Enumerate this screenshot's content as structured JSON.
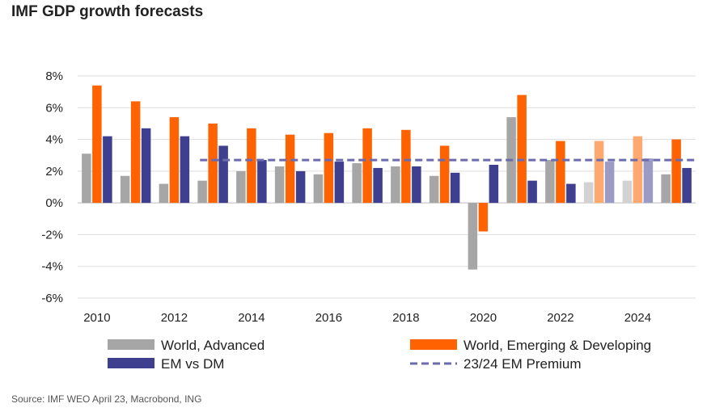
{
  "title": "IMF GDP growth forecasts",
  "source": "Source: IMF WEO April 23, Macrobond, ING",
  "colors": {
    "advanced": "#a6a6a6",
    "advanced_forecast": "#d2d2d2",
    "emerging": "#ff6200",
    "emerging_forecast": "#ffa86f",
    "em_vs_dm": "#3f3f8f",
    "em_vs_dm_forecast": "#9b9bc6",
    "premium": "#6b6bad",
    "grid": "#dddddd"
  },
  "chart_data": {
    "type": "bar",
    "title": "IMF GDP growth forecasts",
    "categories": [
      2010,
      2011,
      2012,
      2013,
      2014,
      2015,
      2016,
      2017,
      2018,
      2019,
      2020,
      2021,
      2022,
      2023,
      2024,
      2025
    ],
    "x_tick_labels": [
      "2010",
      "2012",
      "2014",
      "2016",
      "2018",
      "2020",
      "2022",
      "2024"
    ],
    "forecast_categories": [
      2023,
      2024
    ],
    "series": [
      {
        "name": "World, Advanced",
        "values": [
          3.1,
          1.7,
          1.2,
          1.4,
          2.0,
          2.3,
          1.8,
          2.5,
          2.3,
          1.7,
          -4.2,
          5.4,
          2.7,
          1.3,
          1.4,
          1.8
        ]
      },
      {
        "name": "World, Emerging & Developing",
        "values": [
          7.4,
          6.4,
          5.4,
          5.0,
          4.7,
          4.3,
          4.4,
          4.7,
          4.6,
          3.6,
          -1.8,
          6.8,
          3.9,
          3.9,
          4.2,
          4.0
        ]
      },
      {
        "name": "EM vs DM",
        "values": [
          4.2,
          4.7,
          4.2,
          3.6,
          2.7,
          2.0,
          2.6,
          2.2,
          2.3,
          1.9,
          2.4,
          1.4,
          1.2,
          2.6,
          2.8,
          2.2
        ]
      }
    ],
    "reference_line": {
      "name": "23/24 EM Premium",
      "value": 2.7,
      "start_category": 2013
    },
    "ylim": [
      -6,
      8
    ],
    "y_ticks": [
      8,
      6,
      4,
      2,
      0,
      -2,
      -4,
      -6
    ],
    "y_tick_labels": [
      "8%",
      "6%",
      "4%",
      "2%",
      "0%",
      "-2%",
      "-4%",
      "-6%"
    ],
    "xlabel": "",
    "ylabel": "",
    "grid": true,
    "legend": {
      "placement": "bottom",
      "items": [
        {
          "label": "World, Advanced",
          "kind": "bar",
          "color_key": "advanced"
        },
        {
          "label": "World, Emerging & Developing",
          "kind": "bar",
          "color_key": "emerging"
        },
        {
          "label": "EM vs DM",
          "kind": "bar",
          "color_key": "em_vs_dm"
        },
        {
          "label": "23/24 EM Premium",
          "kind": "dash",
          "color_key": "premium"
        }
      ]
    }
  }
}
